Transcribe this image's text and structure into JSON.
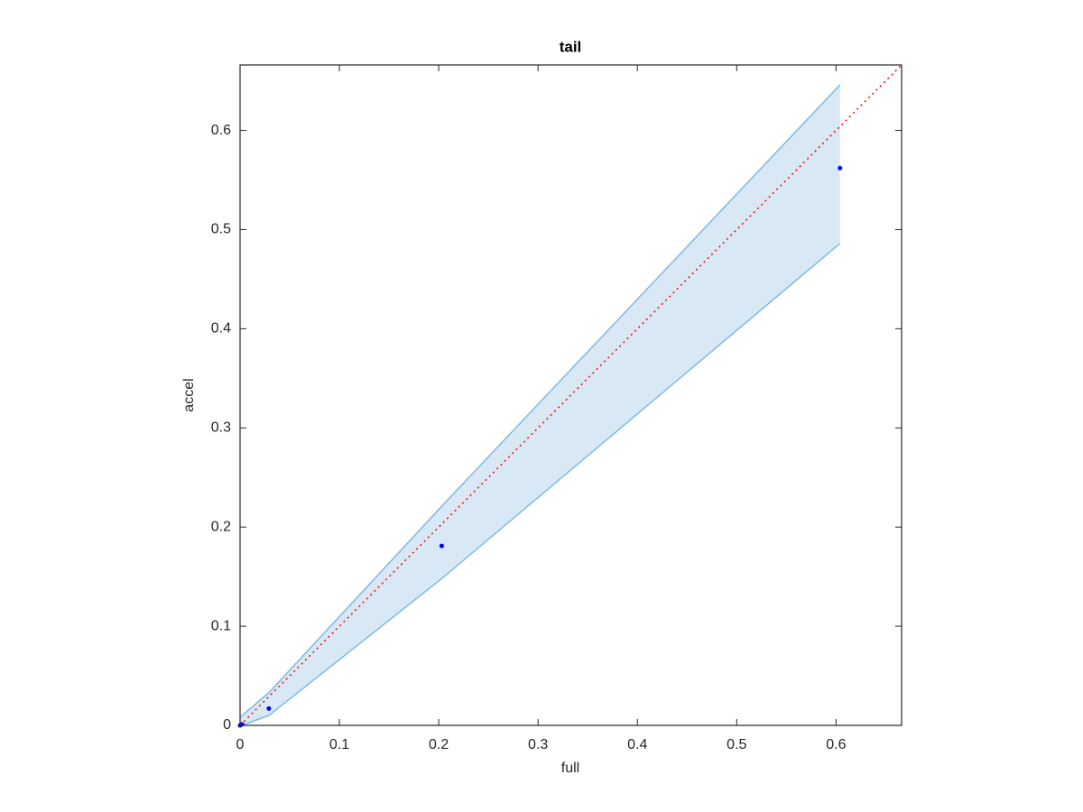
{
  "chart_data": {
    "type": "scatter",
    "title": "tail",
    "xlabel": "full",
    "ylabel": "accel",
    "x": [
      0,
      0.002,
      0.029,
      0.203,
      0.604
    ],
    "values": [
      0,
      0.001,
      0.017,
      0.181,
      0.562
    ],
    "color": "#0000ff",
    "band": {
      "x": [
        0,
        0.002,
        0.029,
        0.203,
        0.604
      ],
      "upper": [
        0.008,
        0.01,
        0.033,
        0.221,
        0.646
      ],
      "lower": [
        0,
        0,
        0.01,
        0.148,
        0.486
      ],
      "color": "#7fb9e0",
      "fill": "#d9e8f5"
    },
    "reference_line": {
      "x": [
        0,
        0.666
      ],
      "values": [
        0,
        0.666
      ],
      "color": "#ff0000"
    },
    "xlim": [
      0,
      0.666
    ],
    "ylim": [
      0,
      0.666
    ],
    "xticks": [
      0,
      0.1,
      0.2,
      0.3,
      0.4,
      0.5,
      0.6
    ],
    "yticks": [
      0,
      0.1,
      0.2,
      0.3,
      0.4,
      0.5,
      0.6
    ],
    "grid": false
  }
}
